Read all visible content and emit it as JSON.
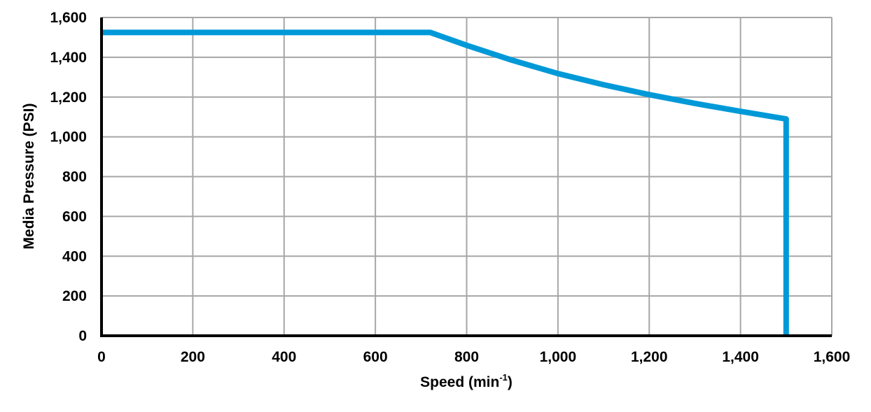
{
  "chart_data": {
    "type": "line",
    "title": "",
    "xlabel": "Speed (min-1)",
    "xlabel_main": "Speed (min",
    "xlabel_sup": "-1",
    "xlabel_close": ")",
    "ylabel": "Media Pressure (PSI)",
    "xlim": [
      0,
      1600
    ],
    "ylim": [
      0,
      1600
    ],
    "grid": true,
    "legend": null,
    "x_ticks": [
      "0",
      "200",
      "400",
      "600",
      "800",
      "1,000",
      "1,200",
      "1,400",
      "1,600"
    ],
    "y_ticks": [
      "0",
      "200",
      "400",
      "600",
      "800",
      "1,000",
      "1,200",
      "1,400",
      "1,600"
    ],
    "series": [
      {
        "name": "Media Pressure",
        "color": "#0099D8",
        "x": [
          0,
          720,
          800,
          900,
          1000,
          1100,
          1200,
          1300,
          1400,
          1500,
          1500
        ],
        "y": [
          1525,
          1525,
          1460,
          1385,
          1318,
          1262,
          1212,
          1168,
          1128,
          1090,
          0
        ]
      }
    ]
  },
  "colors": {
    "line": "#0099D8",
    "grid": "#A6A6A6",
    "axis": "#000000"
  }
}
